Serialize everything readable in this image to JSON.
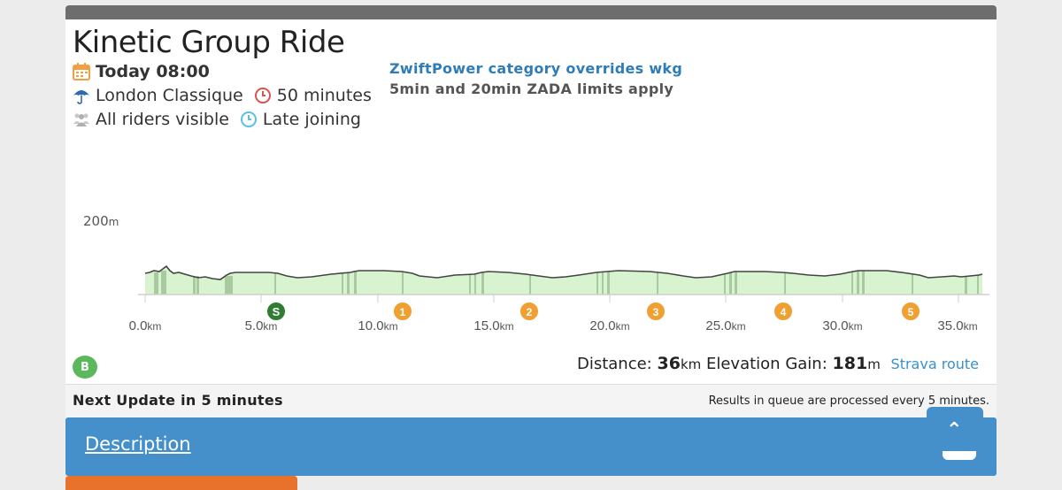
{
  "event": {
    "title": "Kinetic Group Ride",
    "datetime": "Today 08:00",
    "route": "London Classique",
    "duration": "50 minutes",
    "visibility": "All riders visible",
    "joining": "Late joining"
  },
  "notes": {
    "category": "ZwiftPower category overrides wkg",
    "limits": "5min and 20min ZADA limits apply"
  },
  "profile": {
    "y_label": "200",
    "y_unit": "m",
    "x_ticks": [
      "0.0",
      "5.0",
      "10.0",
      "15.0",
      "20.0",
      "25.0",
      "30.0",
      "35.0"
    ],
    "x_unit": "km",
    "markers": [
      "S",
      "1",
      "2",
      "3",
      "4",
      "5"
    ],
    "fill_color": "#d8f3cf",
    "climb_color": "#a9c99f",
    "line_color": "#444444"
  },
  "summary": {
    "distance_label": "Distance:",
    "distance_value": "36",
    "distance_unit": "km",
    "elevation_label": "Elevation Gain:",
    "elevation_value": "181",
    "elevation_unit": "m",
    "strava_link": "Strava route",
    "badge": "B"
  },
  "update_bar": {
    "next_update": "Next Update in 5 minutes",
    "queue_note": "Results in queue are processed every 5 minutes."
  },
  "description": {
    "label": "Description"
  },
  "scroll_top": {
    "icon": "chevron-up-icon"
  }
}
